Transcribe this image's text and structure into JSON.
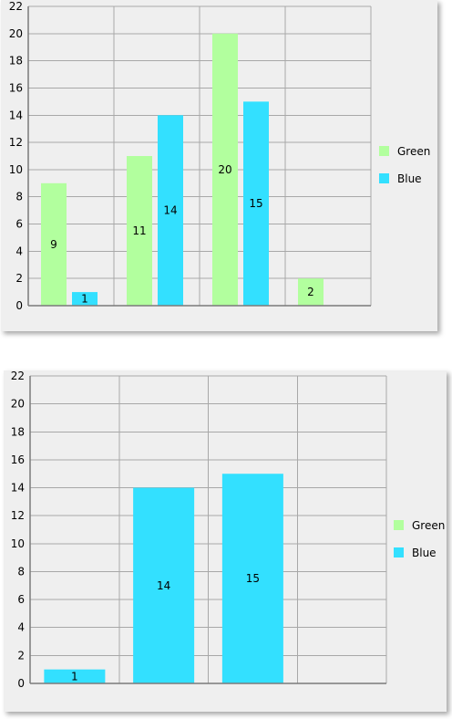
{
  "chart_data": [
    {
      "type": "bar",
      "categories": [
        "",
        "",
        "",
        ""
      ],
      "series": [
        {
          "name": "Green",
          "color": "#b2ff9e",
          "values": [
            9,
            11,
            20,
            2
          ]
        },
        {
          "name": "Blue",
          "color": "#33e0ff",
          "values": [
            1,
            14,
            15,
            null
          ]
        }
      ],
      "ylim": [
        0,
        22
      ],
      "yticks": [
        0,
        2,
        4,
        6,
        8,
        10,
        12,
        14,
        16,
        18,
        20,
        22
      ],
      "title": "",
      "xlabel": "",
      "ylabel": "",
      "grid": true,
      "legend": "right"
    },
    {
      "type": "bar",
      "categories": [
        "",
        "",
        "",
        ""
      ],
      "series": [
        {
          "name": "Green",
          "color": "#b2ff9e",
          "values": [
            null,
            null,
            null,
            null
          ]
        },
        {
          "name": "Blue",
          "color": "#33e0ff",
          "values": [
            1,
            14,
            15,
            null
          ]
        }
      ],
      "ylim": [
        0,
        22
      ],
      "yticks": [
        0,
        2,
        4,
        6,
        8,
        10,
        12,
        14,
        16,
        18,
        20,
        22
      ],
      "title": "",
      "xlabel": "",
      "ylabel": "",
      "grid": true,
      "legend": "right"
    }
  ]
}
